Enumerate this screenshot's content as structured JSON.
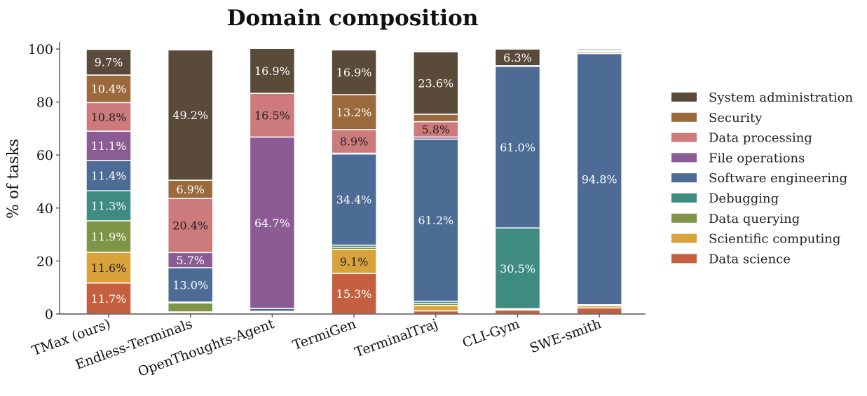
{
  "chart_data": {
    "type": "bar",
    "stacked": true,
    "title": "Domain composition",
    "xlabel": "",
    "ylabel": "% of tasks",
    "ylim": [
      0,
      100
    ],
    "yticks": [
      0,
      20,
      40,
      60,
      80,
      100
    ],
    "grid": false,
    "legend_position": "right",
    "categories": [
      "TMax (ours)",
      "Endless-Terminals",
      "OpenThoughts-Agent",
      "TermiGen",
      "TerminalTraj",
      "CLI-Gym",
      "SWE-smith"
    ],
    "series": [
      {
        "name": "Data science",
        "color": "#c4603f",
        "values": [
          11.7,
          0.5,
          0.3,
          15.3,
          1.2,
          1.5,
          2.3
        ],
        "labels": [
          "11.7%",
          "",
          "",
          "15.3%",
          "",
          "",
          ""
        ],
        "label_colors": [
          "#ffffff",
          "",
          "",
          "#ffffff",
          "",
          "",
          ""
        ]
      },
      {
        "name": "Scientific computing",
        "color": "#d9a33c",
        "values": [
          11.6,
          0.3,
          0.2,
          9.1,
          2.0,
          0.3,
          0.8
        ],
        "labels": [
          "11.6%",
          "",
          "",
          "9.1%",
          "",
          "",
          ""
        ],
        "label_colors": [
          "#222222",
          "",
          "",
          "#222222",
          "",
          "",
          ""
        ]
      },
      {
        "name": "Data querying",
        "color": "#7f9446",
        "values": [
          11.9,
          3.4,
          0.2,
          0.8,
          0.8,
          0.2,
          0.2
        ],
        "labels": [
          "11.9%",
          "",
          "",
          "",
          "",
          "",
          ""
        ],
        "label_colors": [
          "#ffffff",
          "",
          "",
          "",
          "",
          "",
          ""
        ]
      },
      {
        "name": "Debugging",
        "color": "#3d8b81",
        "values": [
          11.3,
          0.3,
          0.3,
          0.8,
          0.8,
          30.5,
          0.2
        ],
        "labels": [
          "11.3%",
          "",
          "",
          "",
          "",
          "30.5%",
          ""
        ],
        "label_colors": [
          "#ffffff",
          "",
          "",
          "",
          "",
          "#ffffff",
          ""
        ]
      },
      {
        "name": "Software engineering",
        "color": "#4c6b95",
        "values": [
          11.4,
          13.0,
          1.1,
          34.4,
          61.2,
          61.0,
          94.8
        ],
        "labels": [
          "11.4%",
          "13.0%",
          "",
          "34.4%",
          "61.2%",
          "61.0%",
          "94.8%"
        ],
        "label_colors": [
          "#ffffff",
          "#ffffff",
          "",
          "#ffffff",
          "#ffffff",
          "#ffffff",
          "#ffffff"
        ]
      },
      {
        "name": "File operations",
        "color": "#8b5c93",
        "values": [
          11.1,
          5.7,
          64.7,
          0.3,
          0.8,
          0.1,
          0.2
        ],
        "labels": [
          "11.1%",
          "5.7%",
          "64.7%",
          "",
          "",
          "",
          ""
        ],
        "label_colors": [
          "#ffffff",
          "#ffffff",
          "#ffffff",
          "",
          "",
          "",
          ""
        ]
      },
      {
        "name": "Data processing",
        "color": "#cc7a7b",
        "values": [
          10.8,
          20.4,
          16.5,
          8.9,
          5.8,
          0.1,
          0.6
        ],
        "labels": [
          "10.8%",
          "20.4%",
          "16.5%",
          "8.9%",
          "5.8%",
          "",
          ""
        ],
        "label_colors": [
          "#222222",
          "#222222",
          "#222222",
          "#222222",
          "#222222",
          "",
          ""
        ]
      },
      {
        "name": "Security",
        "color": "#9b6a3c",
        "values": [
          10.4,
          6.9,
          0.0,
          13.2,
          2.8,
          0.0,
          0.4
        ],
        "labels": [
          "10.4%",
          "6.9%",
          "",
          "13.2%",
          "",
          "",
          ""
        ],
        "label_colors": [
          "#ffffff",
          "#ffffff",
          "",
          "#ffffff",
          "",
          "",
          ""
        ]
      },
      {
        "name": "System administration",
        "color": "#5a4a3a",
        "values": [
          9.7,
          49.2,
          16.9,
          16.9,
          23.6,
          6.3,
          0.5
        ],
        "labels": [
          "9.7%",
          "49.2%",
          "16.9%",
          "16.9%",
          "23.6%",
          "6.3%",
          ""
        ],
        "label_colors": [
          "#ffffff",
          "#ffffff",
          "#ffffff",
          "#ffffff",
          "#ffffff",
          "#ffffff",
          ""
        ]
      }
    ],
    "legend_order": [
      "System administration",
      "Security",
      "Data processing",
      "File operations",
      "Software engineering",
      "Debugging",
      "Data querying",
      "Scientific computing",
      "Data science"
    ]
  }
}
